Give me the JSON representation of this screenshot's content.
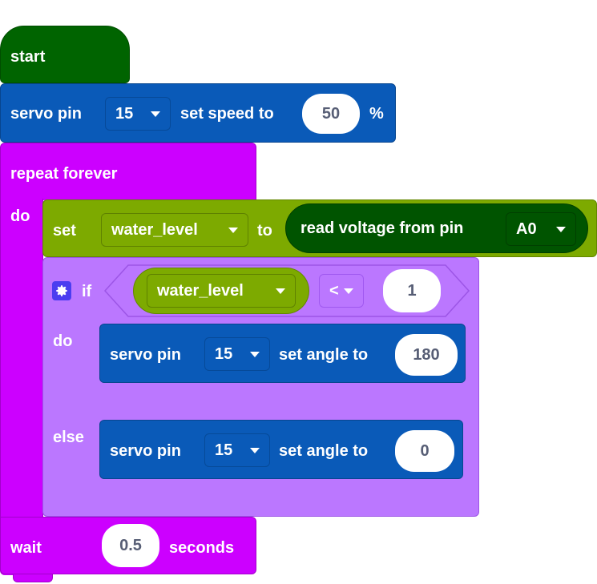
{
  "start_block": {
    "label": "start"
  },
  "speed_block": {
    "prefix": "servo pin",
    "pin": "15",
    "middle": "set speed to",
    "value": "50",
    "suffix": "%"
  },
  "repeat_block": {
    "label": "repeat forever",
    "do_label": "do"
  },
  "set_block": {
    "label": "set",
    "variable": "water_level",
    "to_label": "to",
    "reporter": "read voltage from pin",
    "pin": "A0"
  },
  "if_block": {
    "if_label": "if",
    "variable": "water_level",
    "operator": "<",
    "compare_value": "1",
    "do_label": "do",
    "else_label": "else"
  },
  "then_block": {
    "prefix": "servo pin",
    "pin": "15",
    "middle": "set angle to",
    "value": "180"
  },
  "else_block": {
    "prefix": "servo pin",
    "pin": "15",
    "middle": "set angle to",
    "value": "0"
  },
  "wait_block": {
    "label": "wait",
    "value": "0.5",
    "suffix": "seconds"
  },
  "colors": {
    "event": "#006400",
    "servo": "#0a5ab8",
    "loop": "#cc00ff",
    "variable": "#7daa00",
    "logic": "#bb77ff",
    "reporter": "#005400"
  }
}
